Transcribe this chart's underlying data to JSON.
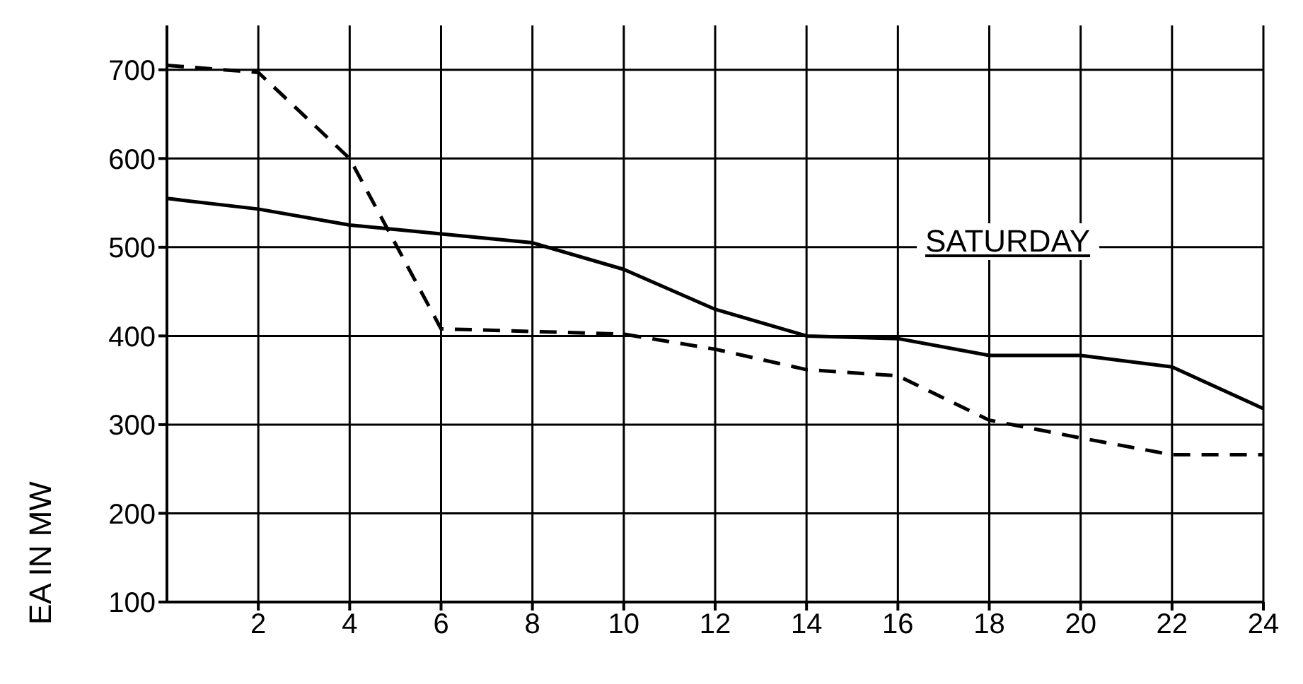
{
  "chart_data": {
    "type": "line",
    "ylabel": "EA  IN  MW",
    "x": [
      0,
      2,
      4,
      6,
      8,
      10,
      12,
      14,
      16,
      18,
      20,
      22,
      24
    ],
    "series": [
      {
        "color": "#000000",
        "line_style": "solid",
        "values": [
          555,
          543,
          525,
          515,
          505,
          475,
          430,
          400,
          397,
          378,
          378,
          365,
          318
        ]
      },
      {
        "color": "#000000",
        "line_style": "dashed",
        "values": [
          705,
          697,
          600,
          408,
          405,
          402,
          385,
          362,
          355,
          305,
          285,
          266,
          266
        ]
      }
    ],
    "xlim": [
      0,
      24
    ],
    "xticks": [
      2,
      4,
      6,
      8,
      10,
      12,
      14,
      16,
      18,
      20,
      22,
      24
    ],
    "ylim": [
      100,
      750
    ],
    "yticks": [
      100,
      200,
      300,
      400,
      500,
      600,
      700
    ],
    "grid": true,
    "marker": "none",
    "annotations": [
      "SATURDAY"
    ]
  }
}
